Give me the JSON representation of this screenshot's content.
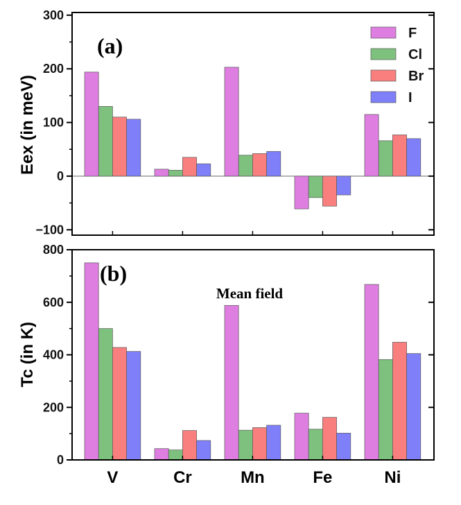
{
  "chart_data": [
    {
      "type": "bar",
      "panel_label": "(a)",
      "ylabel": "Eex (in meV)",
      "xlabel": "",
      "ylim": [
        -110,
        305
      ],
      "yticks": [
        -100,
        0,
        100,
        200,
        300
      ],
      "ytick_labels": [
        "−100",
        "0",
        "100",
        "200",
        "300"
      ],
      "zero_line": true,
      "legend_position": "top-right",
      "categories": [
        "V",
        "Cr",
        "Mn",
        "Fe",
        "Ni"
      ],
      "series": [
        {
          "name": "F",
          "color": "#dd7ee0",
          "values": [
            194,
            13,
            203,
            -61,
            115
          ]
        },
        {
          "name": "Cl",
          "color": "#7ec07e",
          "values": [
            130,
            11,
            39,
            -40,
            66
          ]
        },
        {
          "name": "Br",
          "color": "#f97f7f",
          "values": [
            110,
            35,
            42,
            -56,
            77
          ]
        },
        {
          "name": "I",
          "color": "#7f7ff9",
          "values": [
            106,
            23,
            46,
            -35,
            70
          ]
        }
      ]
    },
    {
      "type": "bar",
      "panel_label": "(b)",
      "annotation": "Mean field",
      "ylabel": "Tc (in K)",
      "xlabel": "",
      "ylim": [
        0,
        800
      ],
      "yticks": [
        0,
        200,
        400,
        600,
        800
      ],
      "ytick_labels": [
        "0",
        "200",
        "400",
        "600",
        "800"
      ],
      "categories": [
        "V",
        "Cr",
        "Mn",
        "Fe",
        "Ni"
      ],
      "series": [
        {
          "name": "F",
          "color": "#dd7ee0",
          "values": [
            750,
            43,
            588,
            178,
            668
          ]
        },
        {
          "name": "Cl",
          "color": "#7ec07e",
          "values": [
            500,
            38,
            113,
            117,
            382
          ]
        },
        {
          "name": "Br",
          "color": "#f97f7f",
          "values": [
            428,
            112,
            123,
            162,
            448
          ]
        },
        {
          "name": "I",
          "color": "#7f7ff9",
          "values": [
            413,
            74,
            132,
            102,
            405
          ]
        }
      ]
    }
  ]
}
